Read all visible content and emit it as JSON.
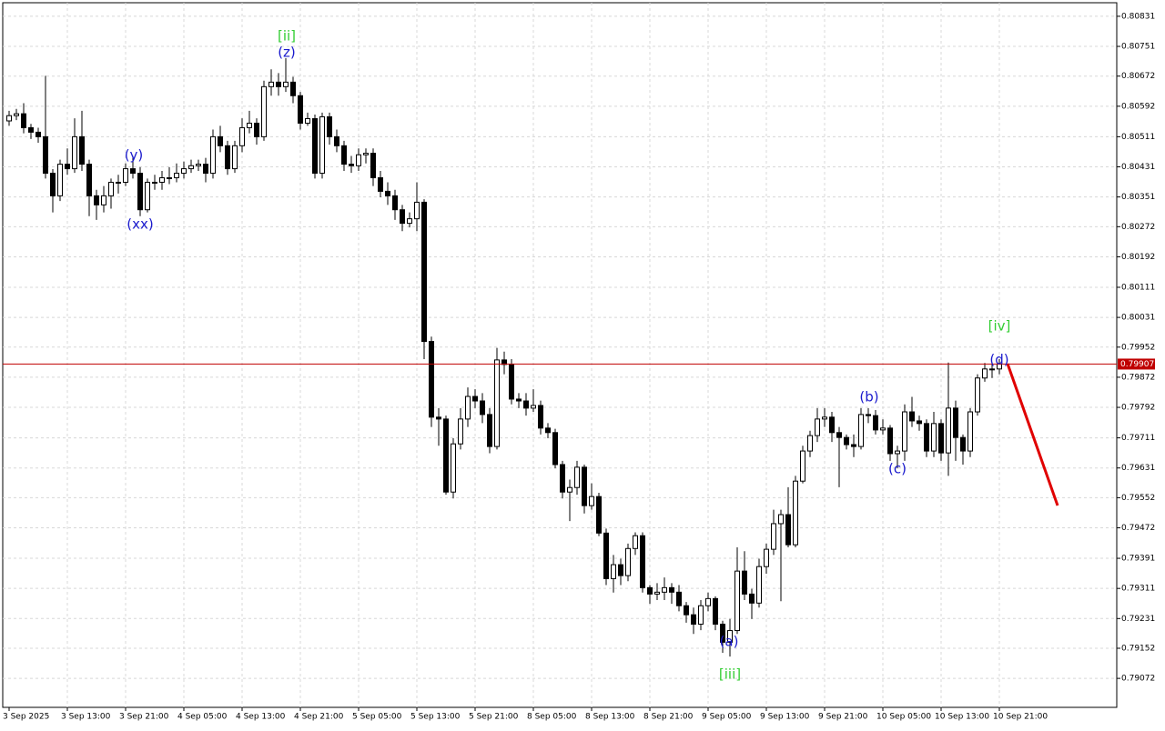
{
  "chart_data": {
    "type": "candlestick",
    "categories": [
      "3 Sep 2025",
      null,
      null,
      null,
      null,
      null,
      null,
      null,
      "3 Sep 13:00",
      null,
      null,
      null,
      null,
      null,
      null,
      null,
      "3 Sep 21:00",
      null,
      null,
      null,
      null,
      null,
      null,
      null,
      "4 Sep 05:00",
      null,
      null,
      null,
      null,
      null,
      null,
      null,
      "4 Sep 13:00",
      null,
      null,
      null,
      null,
      null,
      null,
      null,
      "4 Sep 21:00",
      null,
      null,
      null,
      null,
      null,
      null,
      null,
      "5 Sep 05:00",
      null,
      null,
      null,
      null,
      null,
      null,
      null,
      "5 Sep 13:00",
      null,
      null,
      null,
      null,
      null,
      null,
      null,
      "5 Sep 21:00",
      null,
      null,
      null,
      null,
      null,
      null,
      null,
      "8 Sep 05:00",
      null,
      null,
      null,
      null,
      null,
      null,
      null,
      "8 Sep 13:00",
      null,
      null,
      null,
      null,
      null,
      null,
      null,
      "8 Sep 21:00",
      null,
      null,
      null,
      null,
      null,
      null,
      null,
      "9 Sep 05:00",
      null,
      null,
      null,
      null,
      null,
      null,
      null,
      "9 Sep 13:00",
      null,
      null,
      null,
      null,
      null,
      null,
      null,
      "9 Sep 21:00",
      null,
      null,
      null,
      null,
      null,
      null,
      null,
      "10 Sep 05:00",
      null,
      null,
      null,
      null,
      null,
      null,
      null,
      "10 Sep 13:00",
      null,
      null,
      null,
      null,
      null,
      null,
      null,
      "10 Sep 21:00"
    ],
    "open": [
      0.80553,
      0.80567,
      0.80572,
      0.80535,
      0.80523,
      0.80511,
      0.80414,
      0.80354,
      0.80438,
      0.80426,
      0.80511,
      0.80438,
      0.80354,
      0.8033,
      0.80354,
      0.8039,
      0.8039,
      0.80426,
      0.80414,
      0.80317,
      0.8039,
      0.8039,
      0.80402,
      0.80402,
      0.80414,
      0.80426,
      0.80434,
      0.80438,
      0.80414,
      0.80511,
      0.80487,
      0.80426,
      0.80487,
      0.80535,
      0.80547,
      0.80511,
      0.80644,
      0.80656,
      0.80644,
      0.80656,
      0.8062,
      0.80547,
      0.80559,
      0.80414,
      0.80564,
      0.80511,
      0.80487,
      0.80438,
      0.80434,
      0.80463,
      0.80467,
      0.80402,
      0.80366,
      0.80354,
      0.80317,
      0.80281,
      0.80293,
      0.80337,
      0.79967,
      0.79766,
      0.79761,
      0.79567,
      0.79695,
      0.79761,
      0.79821,
      0.79809,
      0.79773,
      0.79688,
      0.79918,
      0.79906,
      0.79814,
      0.79809,
      0.7979,
      0.79797,
      0.79737,
      0.79725,
      0.7964,
      0.79567,
      0.79579,
      0.79633,
      0.79531,
      0.79555,
      0.79458,
      0.79337,
      0.79374,
      0.79345,
      0.79417,
      0.79451,
      0.79313,
      0.79296,
      0.79301,
      0.79313,
      0.79301,
      0.79265,
      0.79241,
      0.79216,
      0.79265,
      0.79284,
      0.79216,
      0.79168,
      0.79199,
      0.79357,
      0.79296,
      0.79272,
      0.79369,
      0.79415,
      0.79483,
      0.79507,
      0.79427,
      0.79596,
      0.79676,
      0.79717,
      0.79761,
      0.79766,
      0.79725,
      0.79712,
      0.79693,
      0.79688,
      0.79773,
      0.7977,
      0.79732,
      0.79737,
      0.79669,
      0.79676,
      0.7978,
      0.79756,
      0.79749,
      0.79676,
      0.79749,
      0.79671,
      0.7979,
      0.79712,
      0.79676,
      0.7978,
      0.7987,
      0.79894,
      0.79894
    ],
    "high": [
      0.8058,
      0.80585,
      0.806,
      0.80545,
      0.80535,
      0.80673,
      0.80425,
      0.8045,
      0.8048,
      0.8056,
      0.8058,
      0.8045,
      0.8037,
      0.8038,
      0.804,
      0.8041,
      0.8044,
      0.8046,
      0.8043,
      0.804,
      0.8041,
      0.8042,
      0.8043,
      0.8044,
      0.80445,
      0.8045,
      0.8045,
      0.80455,
      0.8053,
      0.8054,
      0.805,
      0.805,
      0.8056,
      0.8058,
      0.8056,
      0.8066,
      0.8069,
      0.8068,
      0.8072,
      0.8067,
      0.8063,
      0.80575,
      0.8057,
      0.80575,
      0.80575,
      0.8053,
      0.805,
      0.8046,
      0.8048,
      0.8048,
      0.8048,
      0.8042,
      0.8039,
      0.8037,
      0.8033,
      0.8031,
      0.8039,
      0.80345,
      0.7998,
      0.7979,
      0.7977,
      0.7971,
      0.7979,
      0.79845,
      0.7984,
      0.7983,
      0.7979,
      0.7995,
      0.7994,
      0.7992,
      0.7983,
      0.7983,
      0.7984,
      0.7981,
      0.7975,
      0.79735,
      0.7965,
      0.796,
      0.7965,
      0.7964,
      0.7959,
      0.79565,
      0.7947,
      0.794,
      0.7939,
      0.7943,
      0.7946,
      0.7946,
      0.7932,
      0.79325,
      0.7934,
      0.79325,
      0.7932,
      0.79275,
      0.7926,
      0.7928,
      0.793,
      0.7929,
      0.79225,
      0.7923,
      0.7942,
      0.7941,
      0.7931,
      0.7939,
      0.7943,
      0.7952,
      0.7952,
      0.7958,
      0.7961,
      0.7969,
      0.7973,
      0.7979,
      0.7979,
      0.7978,
      0.7974,
      0.7972,
      0.7972,
      0.7979,
      0.7979,
      0.79785,
      0.7976,
      0.79745,
      0.7969,
      0.798,
      0.7982,
      0.7977,
      0.7976,
      0.7978,
      0.7976,
      0.79911,
      0.7981,
      0.7972,
      0.7979,
      0.7988,
      0.7991,
      0.7991,
      0.7992
    ],
    "low": [
      0.8054,
      0.80555,
      0.8052,
      0.80505,
      0.80495,
      0.804,
      0.8031,
      0.8034,
      0.8041,
      0.80415,
      0.8042,
      0.803,
      0.8029,
      0.8031,
      0.8032,
      0.8036,
      0.8038,
      0.804,
      0.803,
      0.8031,
      0.8037,
      0.8037,
      0.80385,
      0.8039,
      0.804,
      0.80415,
      0.8042,
      0.8039,
      0.804,
      0.8047,
      0.8041,
      0.80415,
      0.8047,
      0.8052,
      0.8049,
      0.805,
      0.8062,
      0.8062,
      0.8063,
      0.806,
      0.8053,
      0.8054,
      0.804,
      0.804,
      0.8049,
      0.8047,
      0.8042,
      0.80415,
      0.8042,
      0.8044,
      0.8038,
      0.8035,
      0.8033,
      0.8029,
      0.8026,
      0.8027,
      0.8026,
      0.7992,
      0.7974,
      0.7969,
      0.7956,
      0.7955,
      0.7968,
      0.7974,
      0.7979,
      0.7975,
      0.7967,
      0.7968,
      0.7988,
      0.798,
      0.7979,
      0.7977,
      0.7978,
      0.7972,
      0.7971,
      0.7963,
      0.7955,
      0.7949,
      0.7956,
      0.7951,
      0.7952,
      0.7945,
      0.7932,
      0.793,
      0.7932,
      0.7933,
      0.794,
      0.793,
      0.7927,
      0.7928,
      0.7928,
      0.7927,
      0.7925,
      0.7922,
      0.7919,
      0.792,
      0.7925,
      0.792,
      0.7914,
      0.7913,
      0.7919,
      0.7928,
      0.7923,
      0.7926,
      0.7935,
      0.794,
      0.79277,
      0.7942,
      0.7942,
      0.7959,
      0.7966,
      0.797,
      0.7974,
      0.797,
      0.7958,
      0.7968,
      0.7966,
      0.7968,
      0.7975,
      0.7972,
      0.7972,
      0.7965,
      0.7963,
      0.7965,
      0.7974,
      0.7973,
      0.7966,
      0.7966,
      0.7965,
      0.7961,
      0.7965,
      0.7964,
      0.7966,
      0.7977,
      0.7986,
      0.7987,
      0.7988
    ],
    "close": [
      0.80567,
      0.80572,
      0.80535,
      0.80523,
      0.80511,
      0.80414,
      0.80354,
      0.80438,
      0.80426,
      0.80511,
      0.80438,
      0.80354,
      0.8033,
      0.80354,
      0.8039,
      0.8039,
      0.80426,
      0.80414,
      0.80317,
      0.8039,
      0.8039,
      0.80402,
      0.80402,
      0.80414,
      0.80426,
      0.80434,
      0.80438,
      0.80414,
      0.80511,
      0.80487,
      0.80426,
      0.80487,
      0.80535,
      0.80547,
      0.80511,
      0.80644,
      0.80656,
      0.80644,
      0.80656,
      0.8062,
      0.80547,
      0.80559,
      0.80414,
      0.80564,
      0.80511,
      0.80487,
      0.80438,
      0.80434,
      0.80463,
      0.80467,
      0.80402,
      0.80366,
      0.80354,
      0.80317,
      0.80281,
      0.80293,
      0.80337,
      0.79967,
      0.79766,
      0.79761,
      0.79567,
      0.79695,
      0.79761,
      0.79821,
      0.79809,
      0.79773,
      0.79688,
      0.79918,
      0.79906,
      0.79814,
      0.79809,
      0.7979,
      0.79797,
      0.79737,
      0.79725,
      0.7964,
      0.79567,
      0.79579,
      0.79633,
      0.79531,
      0.79555,
      0.79458,
      0.79337,
      0.79374,
      0.79345,
      0.79417,
      0.79451,
      0.79313,
      0.79296,
      0.79301,
      0.79313,
      0.79301,
      0.79265,
      0.79241,
      0.79216,
      0.79265,
      0.79284,
      0.79216,
      0.79168,
      0.79199,
      0.79357,
      0.79296,
      0.79272,
      0.79369,
      0.79415,
      0.79483,
      0.79507,
      0.79427,
      0.79596,
      0.79676,
      0.79717,
      0.79761,
      0.79766,
      0.79725,
      0.79712,
      0.79693,
      0.79688,
      0.79773,
      0.7977,
      0.79732,
      0.79737,
      0.79669,
      0.79676,
      0.7978,
      0.79756,
      0.79749,
      0.79676,
      0.79749,
      0.79671,
      0.7979,
      0.79712,
      0.79676,
      0.7978,
      0.7987,
      0.79894,
      0.79894,
      0.79907
    ],
    "ylim": [
      0.78995,
      0.80867
    ],
    "yticks": [
      0.80831,
      0.80751,
      0.80672,
      0.80592,
      0.80511,
      0.80431,
      0.80351,
      0.80272,
      0.80192,
      0.80111,
      0.80031,
      0.79952,
      0.79872,
      0.79792,
      0.79711,
      0.79631,
      0.79552,
      0.79472,
      0.79391,
      0.79311,
      0.79231,
      0.79152,
      0.79072
    ],
    "grid": true,
    "up_color": "#ffffff",
    "down_color": "#000000",
    "last_price": 0.79907,
    "last_price_color": "#c00000",
    "annotations": [
      {
        "text": "[ii]",
        "color": "#32cd32"
      },
      {
        "text": "(z)",
        "color": "#1a1acd"
      },
      {
        "text": "(y)",
        "color": "#1a1acd"
      },
      {
        "text": "(xx)",
        "color": "#1a1acd"
      },
      {
        "text": "(a)",
        "color": "#1a1acd"
      },
      {
        "text": "[iii]",
        "color": "#32cd32"
      },
      {
        "text": "(b)",
        "color": "#1a1acd"
      },
      {
        "text": "(c)",
        "color": "#1a1acd"
      },
      {
        "text": "[iv]",
        "color": "#32cd32"
      },
      {
        "text": "(d)",
        "color": "#1a1acd"
      }
    ]
  }
}
